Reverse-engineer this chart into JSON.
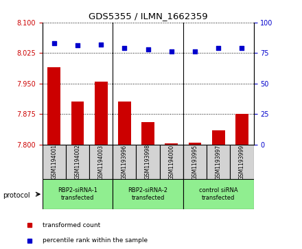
{
  "title": "GDS5355 / ILMN_1662359",
  "samples": [
    "GSM1194001",
    "GSM1194002",
    "GSM1194003",
    "GSM1193996",
    "GSM1193998",
    "GSM1194000",
    "GSM1193995",
    "GSM1193997",
    "GSM1193999"
  ],
  "bar_values": [
    7.99,
    7.905,
    7.955,
    7.905,
    7.855,
    7.803,
    7.805,
    7.835,
    7.875
  ],
  "dot_values": [
    83,
    81,
    82,
    79,
    78,
    76,
    76,
    79,
    79
  ],
  "ymin": 7.8,
  "ymax": 8.1,
  "y2min": 0,
  "y2max": 100,
  "yticks": [
    7.8,
    7.875,
    7.95,
    8.025,
    8.1
  ],
  "y2ticks": [
    0,
    25,
    50,
    75,
    100
  ],
  "bar_color": "#cc0000",
  "dot_color": "#0000cc",
  "group_boundaries": [
    3,
    6
  ],
  "protocol_groups": [
    {
      "label": "RBP2-siRNA-1\ntransfected",
      "start": 0,
      "end": 3,
      "color": "#90EE90"
    },
    {
      "label": "RBP2-siRNA-2\ntransfected",
      "start": 3,
      "end": 6,
      "color": "#90EE90"
    },
    {
      "label": "control siRNA\ntransfected",
      "start": 6,
      "end": 9,
      "color": "#90EE90"
    }
  ],
  "legend_items": [
    {
      "label": "transformed count",
      "color": "#cc0000"
    },
    {
      "label": "percentile rank within the sample",
      "color": "#0000cc"
    }
  ],
  "protocol_label": "protocol"
}
